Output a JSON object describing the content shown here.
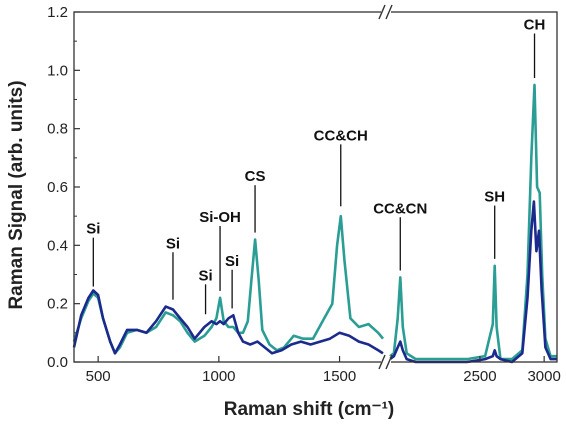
{
  "chart_data": {
    "type": "line",
    "title": "",
    "xlabel": "Raman shift (cm⁻¹)",
    "ylabel": "Raman Signal (arb. units)",
    "ylim": [
      0.0,
      1.2
    ],
    "yticks": [
      "0.0",
      "0.2",
      "0.4",
      "0.6",
      "0.8",
      "1.0",
      "1.2"
    ],
    "xaxis_break": true,
    "x_segments": [
      {
        "xlim": [
          400,
          1680
        ],
        "ticks": [
          500,
          1000,
          1500
        ],
        "tick_labels": [
          "500",
          "1000",
          "1500"
        ]
      },
      {
        "xlim": [
          1800,
          3100
        ],
        "ticks": [
          2500,
          3000
        ],
        "tick_labels": [
          "2500",
          "3000"
        ]
      }
    ],
    "colors": {
      "series_a": "#2a9d94",
      "series_b": "#1b2a8c"
    },
    "series": [
      {
        "key": "a",
        "color": "#2a9d94",
        "points": [
          [
            400,
            0.07
          ],
          [
            430,
            0.15
          ],
          [
            460,
            0.21
          ],
          [
            480,
            0.235
          ],
          [
            500,
            0.22
          ],
          [
            520,
            0.15
          ],
          [
            550,
            0.07
          ],
          [
            570,
            0.03
          ],
          [
            590,
            0.05
          ],
          [
            620,
            0.1
          ],
          [
            660,
            0.11
          ],
          [
            700,
            0.1
          ],
          [
            740,
            0.12
          ],
          [
            780,
            0.17
          ],
          [
            810,
            0.16
          ],
          [
            840,
            0.14
          ],
          [
            870,
            0.1
          ],
          [
            900,
            0.07
          ],
          [
            940,
            0.09
          ],
          [
            970,
            0.12
          ],
          [
            990,
            0.15
          ],
          [
            1005,
            0.22
          ],
          [
            1020,
            0.14
          ],
          [
            1040,
            0.12
          ],
          [
            1060,
            0.12
          ],
          [
            1080,
            0.1
          ],
          [
            1100,
            0.1
          ],
          [
            1120,
            0.14
          ],
          [
            1135,
            0.28
          ],
          [
            1150,
            0.42
          ],
          [
            1165,
            0.28
          ],
          [
            1180,
            0.11
          ],
          [
            1210,
            0.06
          ],
          [
            1240,
            0.04
          ],
          [
            1270,
            0.05
          ],
          [
            1310,
            0.09
          ],
          [
            1350,
            0.08
          ],
          [
            1390,
            0.08
          ],
          [
            1430,
            0.14
          ],
          [
            1470,
            0.2
          ],
          [
            1490,
            0.4
          ],
          [
            1505,
            0.5
          ],
          [
            1520,
            0.35
          ],
          [
            1545,
            0.15
          ],
          [
            1580,
            0.12
          ],
          [
            1620,
            0.13
          ],
          [
            1660,
            0.1
          ],
          [
            1680,
            0.08
          ],
          [
            1800,
            0.02
          ],
          [
            1830,
            0.03
          ],
          [
            1860,
            0.15
          ],
          [
            1880,
            0.29
          ],
          [
            1900,
            0.12
          ],
          [
            1930,
            0.03
          ],
          [
            2000,
            0.01
          ],
          [
            2200,
            0.01
          ],
          [
            2400,
            0.01
          ],
          [
            2540,
            0.02
          ],
          [
            2600,
            0.13
          ],
          [
            2615,
            0.33
          ],
          [
            2630,
            0.12
          ],
          [
            2660,
            0.01
          ],
          [
            2750,
            0.01
          ],
          [
            2830,
            0.04
          ],
          [
            2870,
            0.3
          ],
          [
            2900,
            0.7
          ],
          [
            2925,
            0.95
          ],
          [
            2945,
            0.6
          ],
          [
            2965,
            0.58
          ],
          [
            2985,
            0.3
          ],
          [
            3010,
            0.08
          ],
          [
            3050,
            0.02
          ],
          [
            3100,
            0.02
          ]
        ]
      },
      {
        "key": "b",
        "color": "#1b2a8c",
        "points": [
          [
            400,
            0.05
          ],
          [
            430,
            0.16
          ],
          [
            460,
            0.22
          ],
          [
            480,
            0.245
          ],
          [
            500,
            0.23
          ],
          [
            520,
            0.15
          ],
          [
            550,
            0.07
          ],
          [
            570,
            0.03
          ],
          [
            590,
            0.06
          ],
          [
            620,
            0.11
          ],
          [
            660,
            0.11
          ],
          [
            700,
            0.1
          ],
          [
            740,
            0.14
          ],
          [
            780,
            0.19
          ],
          [
            810,
            0.18
          ],
          [
            840,
            0.15
          ],
          [
            870,
            0.12
          ],
          [
            900,
            0.08
          ],
          [
            940,
            0.12
          ],
          [
            970,
            0.14
          ],
          [
            990,
            0.13
          ],
          [
            1005,
            0.14
          ],
          [
            1020,
            0.13
          ],
          [
            1040,
            0.15
          ],
          [
            1060,
            0.16
          ],
          [
            1080,
            0.1
          ],
          [
            1100,
            0.07
          ],
          [
            1130,
            0.06
          ],
          [
            1160,
            0.07
          ],
          [
            1190,
            0.05
          ],
          [
            1220,
            0.03
          ],
          [
            1260,
            0.04
          ],
          [
            1300,
            0.06
          ],
          [
            1340,
            0.07
          ],
          [
            1380,
            0.06
          ],
          [
            1420,
            0.07
          ],
          [
            1460,
            0.08
          ],
          [
            1500,
            0.1
          ],
          [
            1540,
            0.09
          ],
          [
            1580,
            0.07
          ],
          [
            1620,
            0.06
          ],
          [
            1660,
            0.04
          ],
          [
            1680,
            0.03
          ],
          [
            1800,
            0.01
          ],
          [
            1830,
            0.02
          ],
          [
            1860,
            0.05
          ],
          [
            1880,
            0.07
          ],
          [
            1900,
            0.04
          ],
          [
            1930,
            0.01
          ],
          [
            2000,
            0.0
          ],
          [
            2200,
            0.0
          ],
          [
            2400,
            0.0
          ],
          [
            2540,
            0.01
          ],
          [
            2600,
            0.02
          ],
          [
            2615,
            0.04
          ],
          [
            2630,
            0.02
          ],
          [
            2660,
            0.01
          ],
          [
            2750,
            0.0
          ],
          [
            2830,
            0.03
          ],
          [
            2870,
            0.22
          ],
          [
            2900,
            0.45
          ],
          [
            2920,
            0.55
          ],
          [
            2940,
            0.38
          ],
          [
            2960,
            0.45
          ],
          [
            2980,
            0.25
          ],
          [
            3010,
            0.05
          ],
          [
            3050,
            0.01
          ],
          [
            3100,
            0.01
          ]
        ]
      }
    ],
    "annotations": [
      {
        "text": "Si",
        "x": 480,
        "peak_y": 0.245,
        "label_y": 0.44
      },
      {
        "text": "Si",
        "x": 810,
        "peak_y": 0.2,
        "label_y": 0.39
      },
      {
        "text": "Si",
        "x": 945,
        "peak_y": 0.15,
        "label_y": 0.28
      },
      {
        "text": "Si-OH",
        "x": 1005,
        "peak_y": 0.23,
        "label_y": 0.48
      },
      {
        "text": "Si",
        "x": 1055,
        "peak_y": 0.17,
        "label_y": 0.33
      },
      {
        "text": "CS",
        "x": 1150,
        "peak_y": 0.43,
        "label_y": 0.62
      },
      {
        "text": "CC&CH",
        "x": 1505,
        "peak_y": 0.52,
        "label_y": 0.76
      },
      {
        "text": "CC&CN",
        "x": 1880,
        "peak_y": 0.3,
        "label_y": 0.51
      },
      {
        "text": "SH",
        "x": 2615,
        "peak_y": 0.34,
        "label_y": 0.55
      },
      {
        "text": "CH",
        "x": 2925,
        "peak_y": 0.96,
        "label_y": 1.14
      }
    ]
  }
}
